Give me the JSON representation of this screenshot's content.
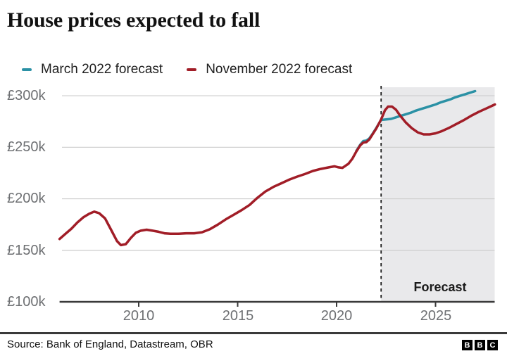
{
  "chart_data": {
    "type": "line",
    "title": "House prices expected to fall",
    "forecast_label": "Forecast",
    "forecast_start_year": 2022.25,
    "grid": true,
    "legend_position": "top",
    "y_axis": {
      "unit": "GBP thousands",
      "labels": [
        "£300k",
        "£250k",
        "£200k",
        "£150k",
        "£100k"
      ],
      "values": [
        300,
        250,
        200,
        150,
        100
      ],
      "range": [
        100,
        310
      ]
    },
    "x_axis": {
      "tick_labels": [
        "2010",
        "2015",
        "2020",
        "2025"
      ],
      "tick_values": [
        2010,
        2015,
        2020,
        2025
      ],
      "range": [
        2006,
        2028
      ]
    },
    "colors": {
      "march_forecast": "#2b91a5",
      "november_forecast": "#a11d27",
      "forecast_shade": "#e9e9eb",
      "grid": "#cccccc",
      "axis": "#3a3a3a",
      "tick_text": "#6e7073",
      "dashed_divider": "#1a1a1a"
    },
    "series": [
      {
        "name": "March 2022 forecast",
        "color": "#2b91a5",
        "points": [
          [
            2021.0,
            246.5
          ],
          [
            2021.2,
            252.5
          ],
          [
            2021.35,
            256
          ],
          [
            2021.5,
            256.5
          ],
          [
            2021.65,
            258.5
          ],
          [
            2021.8,
            262.5
          ],
          [
            2022.0,
            268.5
          ],
          [
            2022.25,
            276.5
          ],
          [
            2022.5,
            277
          ],
          [
            2022.75,
            277.5
          ],
          [
            2023.0,
            279
          ],
          [
            2023.25,
            280.5
          ],
          [
            2023.5,
            282
          ],
          [
            2023.75,
            283.5
          ],
          [
            2024.0,
            285.5
          ],
          [
            2024.25,
            287
          ],
          [
            2024.5,
            288.5
          ],
          [
            2024.75,
            290
          ],
          [
            2025.0,
            291.5
          ],
          [
            2025.25,
            293.5
          ],
          [
            2025.5,
            295
          ],
          [
            2025.75,
            296.5
          ],
          [
            2026.0,
            298.5
          ],
          [
            2026.25,
            300
          ],
          [
            2026.5,
            301.5
          ],
          [
            2026.75,
            303
          ],
          [
            2027.0,
            304.5
          ]
        ]
      },
      {
        "name": "November 2022 forecast",
        "color": "#a11d27",
        "points": [
          [
            2006.0,
            161
          ],
          [
            2006.3,
            166
          ],
          [
            2006.6,
            171
          ],
          [
            2006.9,
            177
          ],
          [
            2007.2,
            182
          ],
          [
            2007.5,
            185.5
          ],
          [
            2007.75,
            187.5
          ],
          [
            2008.0,
            186
          ],
          [
            2008.3,
            181
          ],
          [
            2008.6,
            170
          ],
          [
            2008.9,
            159
          ],
          [
            2009.1,
            155
          ],
          [
            2009.35,
            156
          ],
          [
            2009.6,
            162
          ],
          [
            2009.85,
            167
          ],
          [
            2010.1,
            169
          ],
          [
            2010.4,
            170
          ],
          [
            2010.7,
            169
          ],
          [
            2011.0,
            168
          ],
          [
            2011.3,
            166.5
          ],
          [
            2011.6,
            166
          ],
          [
            2012.0,
            166
          ],
          [
            2012.4,
            166.5
          ],
          [
            2012.8,
            166.5
          ],
          [
            2013.2,
            167.5
          ],
          [
            2013.6,
            170.5
          ],
          [
            2014.0,
            175
          ],
          [
            2014.4,
            180
          ],
          [
            2014.8,
            184.5
          ],
          [
            2015.2,
            189
          ],
          [
            2015.6,
            194
          ],
          [
            2016.0,
            201
          ],
          [
            2016.4,
            207
          ],
          [
            2016.8,
            211.5
          ],
          [
            2017.2,
            215
          ],
          [
            2017.6,
            218.5
          ],
          [
            2018.0,
            221.5
          ],
          [
            2018.4,
            224
          ],
          [
            2018.8,
            227
          ],
          [
            2019.2,
            229
          ],
          [
            2019.6,
            230.5
          ],
          [
            2019.9,
            231.5
          ],
          [
            2020.1,
            230.5
          ],
          [
            2020.3,
            230
          ],
          [
            2020.6,
            234
          ],
          [
            2020.8,
            239
          ],
          [
            2021.0,
            246
          ],
          [
            2021.2,
            252
          ],
          [
            2021.35,
            254.5
          ],
          [
            2021.5,
            255
          ],
          [
            2021.65,
            257.5
          ],
          [
            2021.8,
            262
          ],
          [
            2022.0,
            268
          ],
          [
            2022.25,
            277
          ],
          [
            2022.45,
            286
          ],
          [
            2022.6,
            289.5
          ],
          [
            2022.8,
            289.5
          ],
          [
            2023.0,
            286.5
          ],
          [
            2023.2,
            281
          ],
          [
            2023.5,
            274
          ],
          [
            2023.8,
            268.5
          ],
          [
            2024.1,
            264.5
          ],
          [
            2024.4,
            262.5
          ],
          [
            2024.7,
            262.5
          ],
          [
            2025.0,
            263.5
          ],
          [
            2025.3,
            265.5
          ],
          [
            2025.7,
            269
          ],
          [
            2026.0,
            272
          ],
          [
            2026.4,
            276
          ],
          [
            2026.8,
            280.5
          ],
          [
            2027.2,
            284.5
          ],
          [
            2027.6,
            288
          ],
          [
            2028.0,
            291.5
          ]
        ]
      }
    ]
  },
  "footer": {
    "source": "Source: Bank of England, Datastream, OBR",
    "logo_letters": [
      "B",
      "B",
      "C"
    ]
  }
}
